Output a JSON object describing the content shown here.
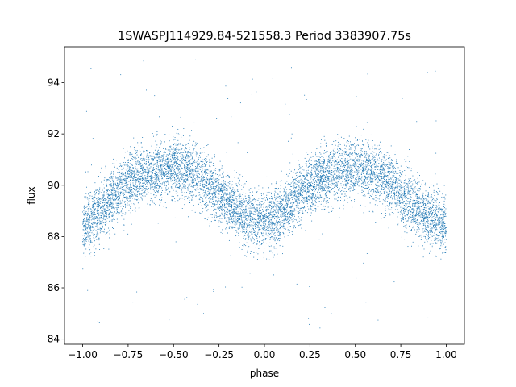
{
  "chart_data": {
    "type": "scatter",
    "title": "1SWASPJ114929.84-521558.3 Period 3383907.75s",
    "xlabel": "phase",
    "ylabel": "flux",
    "xlim": [
      -1.1,
      1.1
    ],
    "ylim": [
      83.8,
      95.4
    ],
    "xticks": [
      -1.0,
      -0.75,
      -0.5,
      -0.25,
      0.0,
      0.25,
      0.5,
      0.75,
      1.0
    ],
    "xtick_labels": [
      "−1.00",
      "−0.75",
      "−0.50",
      "−0.25",
      "0.00",
      "0.25",
      "0.50",
      "0.75",
      "1.00"
    ],
    "yticks": [
      84,
      86,
      88,
      90,
      92,
      94
    ],
    "ytick_labels": [
      "84",
      "86",
      "88",
      "90",
      "92",
      "94"
    ],
    "grid": false,
    "series_color": "#1f77b4",
    "series": [
      {
        "phase_range": [
          -1.0,
          1.0
        ],
        "curve_phase": [
          -1.0,
          -0.9,
          -0.8,
          -0.7,
          -0.6,
          -0.5,
          -0.4,
          -0.3,
          -0.2,
          -0.1,
          0.0,
          0.1,
          0.2,
          0.3,
          0.4,
          0.5,
          0.6,
          0.7,
          0.8,
          0.9,
          1.0
        ],
        "curve_flux": [
          88.3,
          89.0,
          89.8,
          90.3,
          90.5,
          90.7,
          90.5,
          90.0,
          89.3,
          88.7,
          88.6,
          89.0,
          89.7,
          90.3,
          90.5,
          90.7,
          90.5,
          90.0,
          89.3,
          88.7,
          88.5
        ],
        "scatter_sigma": 0.75,
        "n_points": 9000,
        "outlier_range": [
          84.3,
          95.0
        ]
      }
    ]
  }
}
